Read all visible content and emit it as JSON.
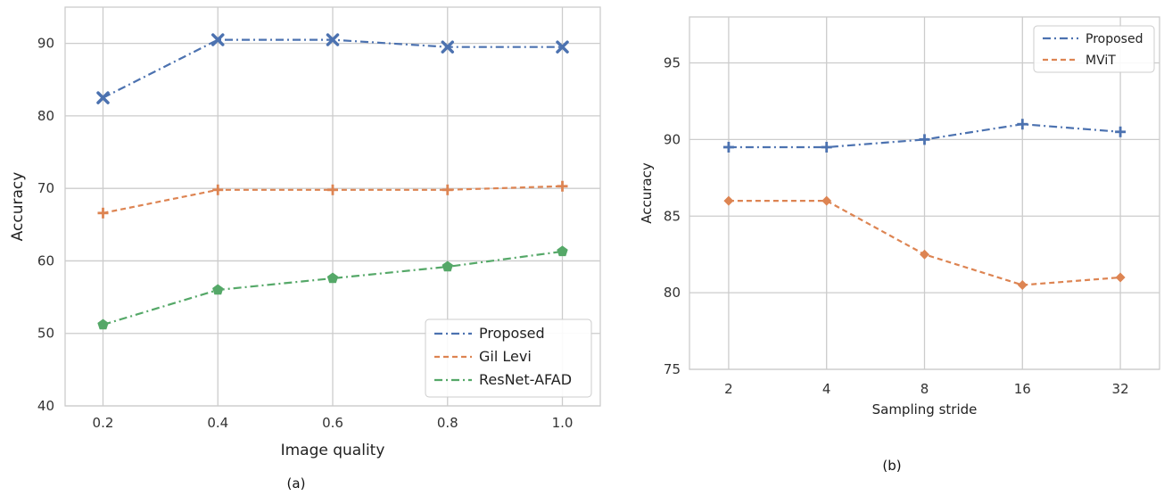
{
  "chart_data": [
    {
      "type": "line",
      "caption": "(a)",
      "xlabel": "Image quality",
      "ylabel": "Accuracy",
      "x": [
        0.2,
        0.4,
        0.6,
        0.8,
        1.0
      ],
      "x_tick_labels": [
        "0.2",
        "0.4",
        "0.6",
        "0.8",
        "1.0"
      ],
      "ylim": [
        40,
        95
      ],
      "y_ticks": [
        40,
        50,
        60,
        70,
        80,
        90
      ],
      "grid": true,
      "legend_position": "bottom-right",
      "series": [
        {
          "name": "Proposed",
          "values": [
            82.5,
            90.5,
            90.5,
            89.5,
            89.5
          ],
          "color": "#4c72b0",
          "dash": "dash-dot",
          "marker": "x"
        },
        {
          "name": "Gil Levi",
          "values": [
            66.6,
            69.8,
            69.8,
            69.8,
            70.3
          ],
          "color": "#dd8452",
          "dash": "dashed",
          "marker": "plus"
        },
        {
          "name": "ResNet-AFAD",
          "values": [
            51.2,
            56.0,
            57.6,
            59.2,
            61.3
          ],
          "color": "#55a868",
          "dash": "dash-dot",
          "marker": "pentagon"
        }
      ]
    },
    {
      "type": "line",
      "caption": "(b)",
      "xlabel": "Sampling stride",
      "ylabel": "Accuracy",
      "categories": [
        "2",
        "4",
        "8",
        "16",
        "32"
      ],
      "ylim": [
        75,
        98
      ],
      "y_ticks": [
        75,
        80,
        85,
        90,
        95
      ],
      "grid": true,
      "legend_position": "top-right",
      "series": [
        {
          "name": "Proposed",
          "values": [
            89.5,
            89.5,
            90.0,
            91.0,
            90.5
          ],
          "color": "#4c72b0",
          "dash": "dash-dot",
          "marker": "plus"
        },
        {
          "name": "MViT",
          "values": [
            86.0,
            86.0,
            82.5,
            80.5,
            81.0
          ],
          "color": "#dd8452",
          "dash": "dashed",
          "marker": "diamond"
        }
      ]
    }
  ]
}
